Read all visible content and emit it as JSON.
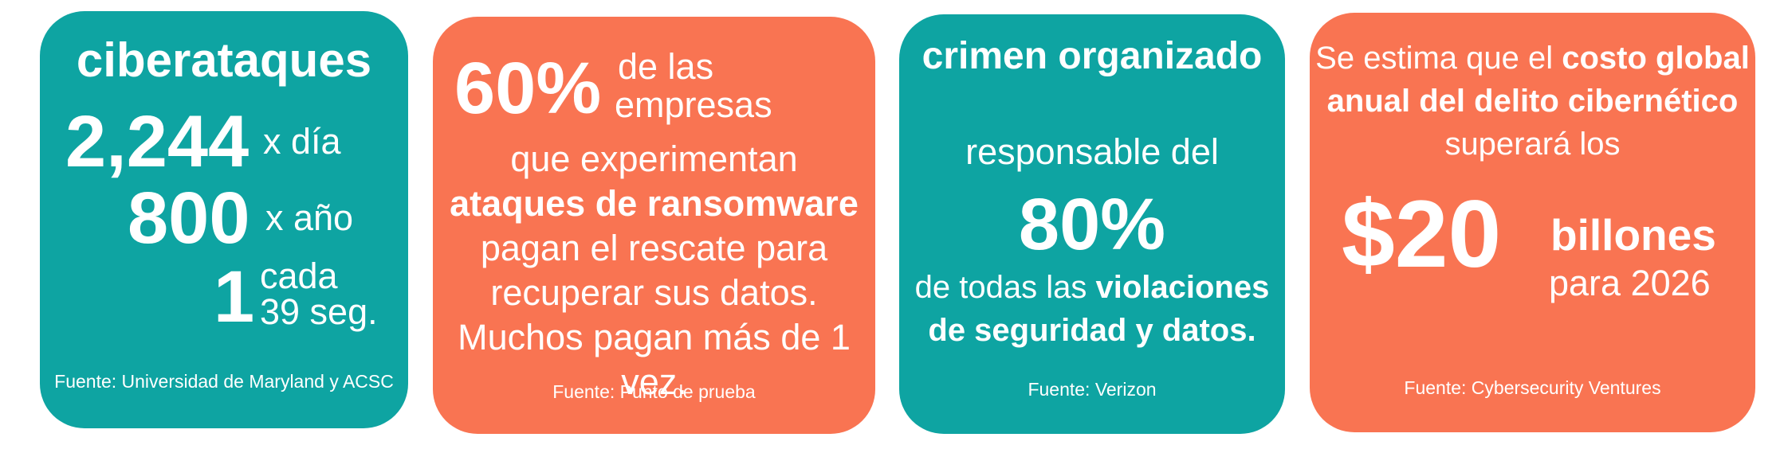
{
  "colors": {
    "teal": "#0ea4a2",
    "orange": "#f97452",
    "text": "#ffffff"
  },
  "card1": {
    "title": "ciberataques",
    "stat1_number": "2,244",
    "stat1_unit": "x día",
    "stat2_number": "800",
    "stat2_unit": "x año",
    "stat3_number": "1",
    "stat3_unit_line1": "cada",
    "stat3_unit_line2": "39 seg.",
    "source": "Fuente: Universidad de Maryland y ACSC"
  },
  "card2": {
    "big_number": "60%",
    "suffix_line1": "de las",
    "suffix_line2": "empresas",
    "body_pre": "que experimentan",
    "body_bold": "ataques de ransomware",
    "body_post": "pagan el rescate para recuperar sus datos. Muchos pagan más de 1 vez.",
    "source": "Fuente: Punto de prueba"
  },
  "card3": {
    "title": "crimen organizado",
    "line2": "responsable del",
    "big_number": "80%",
    "body_pre": "de todas las",
    "body_bold": "violaciones de seguridad y datos.",
    "source": "Fuente: Verizon"
  },
  "card4": {
    "body_pre": "Se estima que el",
    "body_bold": "costo global anual del delito cibernético",
    "body_post": "superará los",
    "big_number": "$20",
    "suffix_bold": "billones",
    "suffix_line2": "para 2026",
    "source": "Fuente: Cybersecurity Ventures"
  }
}
